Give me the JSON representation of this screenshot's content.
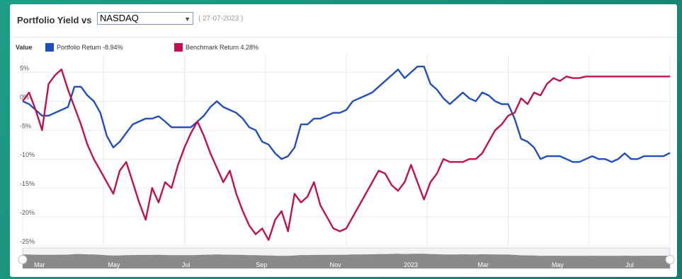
{
  "header": {
    "title": "Portfolio Yield vs",
    "benchmark_select": "NASDAQ",
    "date": "( 27-07-2023 )"
  },
  "legend": {
    "label": "Value",
    "items": [
      {
        "text": "Portfolio Return -8.94%",
        "color": "#1f4fbf"
      },
      {
        "text": "Benchmark Return 4.28%",
        "color": "#c0104f"
      }
    ]
  },
  "chart_data": {
    "type": "line",
    "xlabel": "",
    "ylabel": "",
    "ylim": [
      -25,
      7
    ],
    "y_ticks": [
      "5%",
      "0%",
      "-5%",
      "-10%",
      "-15%",
      "-20%",
      "-25%"
    ],
    "y_tick_values": [
      5,
      0,
      -5,
      -10,
      -15,
      -20,
      -25
    ],
    "navigator_labels": [
      "Mar",
      "May",
      "Jul",
      "Sep",
      "Nov",
      "2023",
      "Mar",
      "May",
      "Jul"
    ],
    "grid": true,
    "legend_position": "top-left",
    "x": [
      0,
      1,
      2,
      3,
      4,
      5,
      6,
      7,
      8,
      9,
      10,
      11,
      12,
      13,
      14,
      15,
      16,
      17,
      18,
      19,
      20,
      21,
      22,
      23,
      24,
      25,
      26,
      27,
      28,
      29,
      30,
      31,
      32,
      33,
      34,
      35,
      36,
      37,
      38,
      39,
      40,
      41,
      42,
      43,
      44,
      45,
      46,
      47,
      48,
      49,
      50,
      51,
      52,
      53,
      54,
      55,
      56,
      57,
      58,
      59,
      60,
      61,
      62,
      63,
      64,
      65,
      66,
      67,
      68,
      69,
      70,
      71,
      72,
      73,
      74,
      75,
      76,
      77,
      78,
      79,
      80,
      81,
      82,
      83,
      84,
      85,
      86,
      87,
      88,
      89,
      90,
      91,
      92,
      93,
      94,
      95,
      96,
      97,
      98,
      99,
      100
    ],
    "series": [
      {
        "name": "Portfolio Return -8.94%",
        "color": "#1f4fbf",
        "values": [
          0,
          -0.5,
          -1.5,
          -2.5,
          -2.5,
          -2,
          -1.5,
          -1,
          2.5,
          2.5,
          1,
          0,
          -2,
          -6,
          -8,
          -7,
          -5.5,
          -4,
          -3.5,
          -3,
          -3,
          -2.6,
          -3.5,
          -4.5,
          -4.5,
          -4.5,
          -4.5,
          -3.5,
          -2.5,
          -1,
          0,
          -1,
          -1.5,
          -2,
          -3,
          -4.5,
          -5,
          -7,
          -7.5,
          -9,
          -10,
          -9.5,
          -8,
          -4,
          -4,
          -3,
          -3,
          -2.5,
          -2,
          -2,
          -1.5,
          0,
          0.5,
          1,
          1.5,
          2.5,
          3.5,
          4.5,
          5.5,
          4,
          5,
          6,
          6,
          3,
          2,
          0.5,
          -0.5,
          0.5,
          1.5,
          0.5,
          0,
          1.5,
          1,
          0,
          -0.5,
          -0.5,
          -3,
          -6.5,
          -7,
          -8,
          -10,
          -9.5,
          -9.5,
          -9.5,
          -10,
          -10.5,
          -10.5,
          -10,
          -9.5,
          -10,
          -10,
          -10.5,
          -10,
          -9,
          -10,
          -10,
          -9.5,
          -9.5,
          -9.5,
          -9.5,
          -8.94
        ]
      },
      {
        "name": "Benchmark Return 4.28%",
        "color": "#c0104f",
        "values": [
          0,
          1.5,
          -1.5,
          -5,
          3,
          4.5,
          5.5,
          2,
          -1,
          -4,
          -7.5,
          -10,
          -12,
          -14,
          -16,
          -12,
          -10.5,
          -14,
          -17.5,
          -20.5,
          -15,
          -17.5,
          -14,
          -15,
          -11,
          -8,
          -5.5,
          -3.5,
          -6,
          -9,
          -11.5,
          -14,
          -12,
          -16,
          -19,
          -21.5,
          -23,
          -22,
          -24,
          -20.5,
          -19,
          -22.5,
          -16,
          -17.5,
          -16.5,
          -14,
          -18,
          -20,
          -22,
          -22.5,
          -22,
          -20,
          -18,
          -16,
          -14,
          -12,
          -12.5,
          -14.5,
          -15.5,
          -14,
          -11,
          -14,
          -17,
          -14,
          -12.5,
          -10,
          -10.5,
          -10.5,
          -10.5,
          -10,
          -10,
          -9,
          -7,
          -5,
          -4,
          -2.5,
          -2,
          0.5,
          -0.5,
          1.5,
          1,
          3,
          4,
          3.5,
          4.28,
          4,
          4,
          4.28,
          4.28,
          4.28,
          4.28,
          4.28,
          4.28,
          4.28,
          4.28,
          4.28,
          4.28,
          4.28,
          4.28,
          4.28,
          4.28
        ]
      }
    ]
  }
}
